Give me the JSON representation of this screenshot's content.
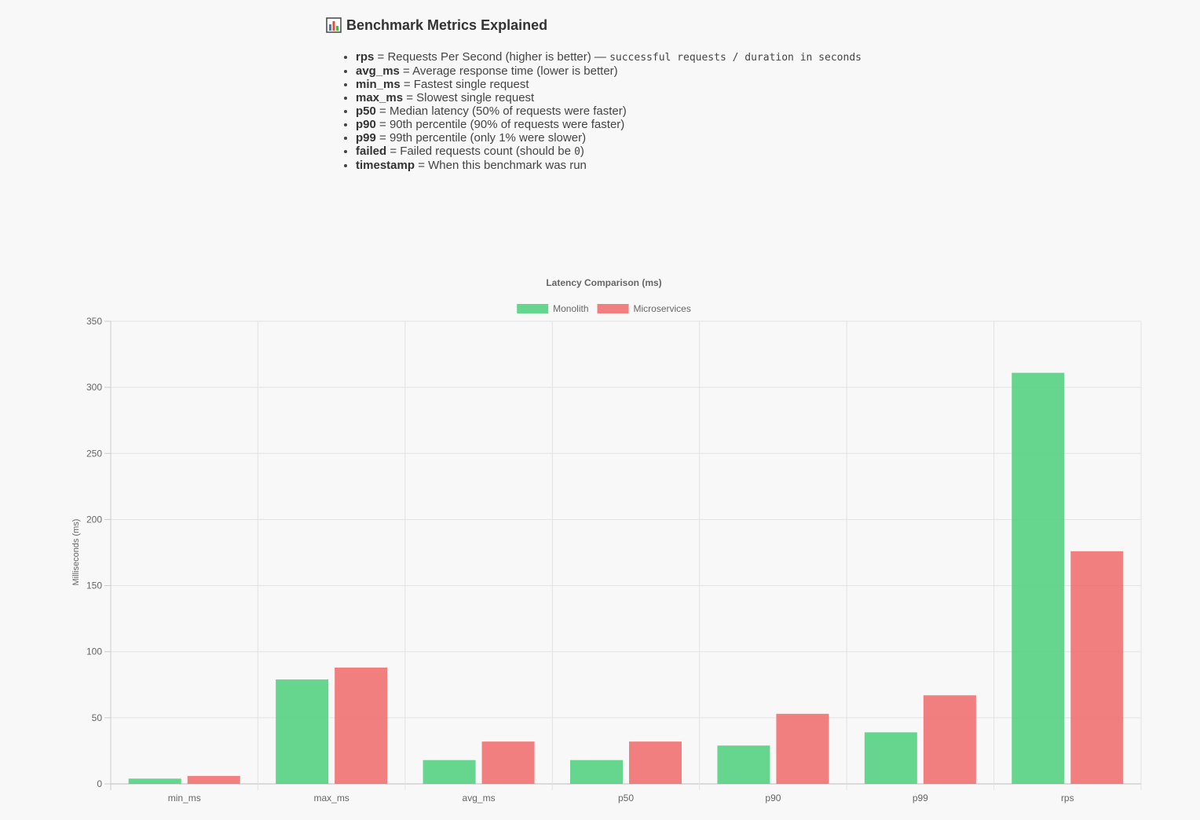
{
  "explain": {
    "icon": "bar-chart-icon",
    "title": "Benchmark Metrics Explained",
    "items": [
      {
        "key": "rps",
        "desc": " = Requests Per Second (higher is better) — ",
        "code": "successful requests / duration in seconds",
        "tail": ""
      },
      {
        "key": "avg_ms",
        "desc": " = Average response time (lower is better)",
        "code": "",
        "tail": ""
      },
      {
        "key": "min_ms",
        "desc": " = Fastest single request",
        "code": "",
        "tail": ""
      },
      {
        "key": "max_ms",
        "desc": " = Slowest single request",
        "code": "",
        "tail": ""
      },
      {
        "key": "p50",
        "desc": " = Median latency (50% of requests were faster)",
        "code": "",
        "tail": ""
      },
      {
        "key": "p90",
        "desc": " = 90th percentile (90% of requests were faster)",
        "code": "",
        "tail": ""
      },
      {
        "key": "p99",
        "desc": " = 99th percentile (only 1% were slower)",
        "code": "",
        "tail": ""
      },
      {
        "key": "failed",
        "desc": " = Failed requests count (should be ",
        "code": "0",
        "tail": ")"
      },
      {
        "key": "timestamp",
        "desc": " = When this benchmark was run",
        "code": "",
        "tail": ""
      }
    ]
  },
  "chart_data": {
    "type": "bar",
    "title": "Latency Comparison (ms)",
    "ylabel": "Milliseconds (ms)",
    "xlabel": "",
    "categories": [
      "min_ms",
      "max_ms",
      "avg_ms",
      "p50",
      "p90",
      "p99",
      "rps"
    ],
    "series": [
      {
        "name": "Monolith",
        "color": "#4cd07d",
        "values": [
          4,
          79,
          18,
          18,
          29,
          39,
          311
        ]
      },
      {
        "name": "Microservices",
        "color": "#f06a6a",
        "values": [
          6,
          88,
          32,
          32,
          53,
          67,
          176
        ]
      }
    ],
    "ylim": [
      0,
      350
    ],
    "yticks": [
      0,
      50,
      100,
      150,
      200,
      250,
      300,
      350
    ],
    "grid": true,
    "legend": "top-center"
  }
}
